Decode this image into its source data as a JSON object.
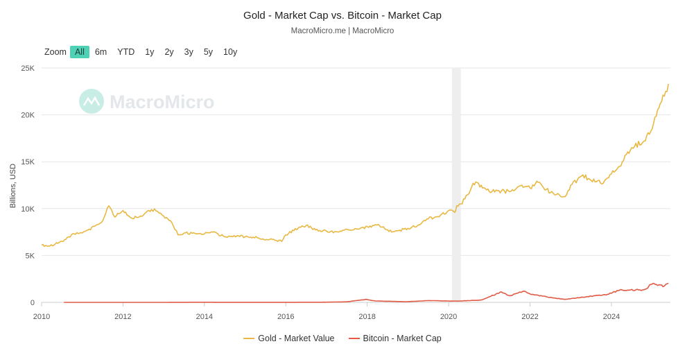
{
  "header": {
    "title": "Gold - Market Cap vs. Bitcoin - Market Cap",
    "subtitle": "MacroMicro.me | MacroMicro"
  },
  "zoom": {
    "label": "Zoom",
    "options": [
      "All",
      "6m",
      "YTD",
      "1y",
      "2y",
      "3y",
      "5y",
      "10y"
    ],
    "active": "All",
    "active_color": "#4fd1b5"
  },
  "watermark": {
    "text": "MacroMicro",
    "icon": "macromicro-logo-icon"
  },
  "chart_data": {
    "type": "line",
    "title": "Gold - Market Cap vs. Bitcoin - Market Cap",
    "subtitle": "MacroMicro.me | MacroMicro",
    "ylabel": "Billions, USD",
    "xlabel": "",
    "ylim": [
      0,
      25000
    ],
    "xlim": [
      2010,
      2025.45
    ],
    "y_ticks": [
      "0",
      "5K",
      "10K",
      "15K",
      "20K",
      "25K"
    ],
    "y_tick_values": [
      0,
      5000,
      10000,
      15000,
      20000,
      25000
    ],
    "x_ticks": [
      "2010",
      "2012",
      "2014",
      "2016",
      "2018",
      "2020",
      "2022",
      "2024"
    ],
    "x_tick_values": [
      2010,
      2012,
      2014,
      2016,
      2018,
      2020,
      2022,
      2024
    ],
    "grid": "horizontal",
    "shaded_period": [
      2020.08,
      2020.3
    ],
    "legend_position": "bottom-center",
    "series": [
      {
        "name": "Gold - Market Value",
        "color": "#e8b843",
        "x": [
          2010.0,
          2010.2,
          2010.5,
          2010.8,
          2011.0,
          2011.3,
          2011.5,
          2011.65,
          2011.8,
          2012.0,
          2012.2,
          2012.5,
          2012.7,
          2012.85,
          2013.0,
          2013.2,
          2013.35,
          2013.5,
          2013.8,
          2014.0,
          2014.2,
          2014.5,
          2014.8,
          2015.0,
          2015.3,
          2015.6,
          2015.9,
          2016.0,
          2016.3,
          2016.5,
          2016.8,
          2017.0,
          2017.3,
          2017.5,
          2017.8,
          2018.0,
          2018.3,
          2018.6,
          2018.8,
          2019.0,
          2019.3,
          2019.5,
          2019.8,
          2020.0,
          2020.15,
          2020.2,
          2020.3,
          2020.5,
          2020.6,
          2020.8,
          2021.0,
          2021.2,
          2021.5,
          2021.8,
          2022.0,
          2022.2,
          2022.5,
          2022.75,
          2022.9,
          2023.0,
          2023.3,
          2023.5,
          2023.8,
          2024.0,
          2024.2,
          2024.5,
          2024.8,
          2025.0,
          2025.2,
          2025.3,
          2025.4
        ],
        "values": [
          6100,
          6000,
          6500,
          7300,
          7400,
          8100,
          8700,
          10300,
          9100,
          9800,
          9000,
          9300,
          9900,
          9700,
          9200,
          8500,
          7200,
          7400,
          7300,
          7300,
          7500,
          7000,
          7100,
          7000,
          6900,
          6700,
          6500,
          7200,
          7900,
          8200,
          7600,
          7600,
          7500,
          7800,
          7800,
          8100,
          8200,
          7500,
          7700,
          7900,
          8300,
          8900,
          9300,
          9800,
          9600,
          10300,
          10500,
          11600,
          12700,
          12500,
          11800,
          11900,
          11800,
          12500,
          12200,
          12800,
          11700,
          11300,
          11500,
          12500,
          13600,
          13000,
          12700,
          13700,
          14500,
          16500,
          17200,
          18500,
          21200,
          22000,
          23300
        ]
      },
      {
        "name": "Bitcoin - Market Cap",
        "color": "#e05a45",
        "x": [
          2010.55,
          2013.0,
          2013.9,
          2014.5,
          2016.0,
          2017.0,
          2017.5,
          2017.96,
          2018.2,
          2018.5,
          2018.95,
          2019.5,
          2020.2,
          2020.8,
          2021.0,
          2021.3,
          2021.5,
          2021.85,
          2022.0,
          2022.4,
          2022.85,
          2023.3,
          2023.9,
          2024.2,
          2024.8,
          2025.0,
          2025.3,
          2025.4
        ],
        "values": [
          0,
          2,
          15,
          8,
          7,
          20,
          60,
          320,
          150,
          120,
          70,
          190,
          130,
          250,
          600,
          1100,
          700,
          1200,
          900,
          600,
          320,
          550,
          850,
          1300,
          1350,
          1950,
          1750,
          2050
        ]
      }
    ]
  }
}
